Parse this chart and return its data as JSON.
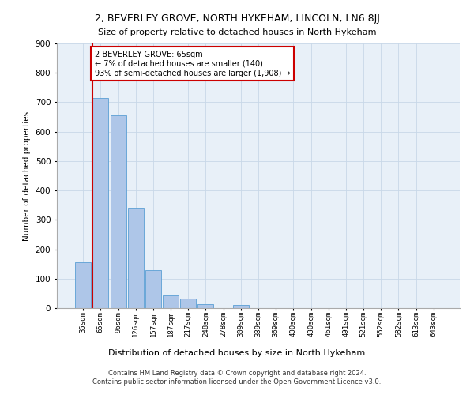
{
  "title": "2, BEVERLEY GROVE, NORTH HYKEHAM, LINCOLN, LN6 8JJ",
  "subtitle": "Size of property relative to detached houses in North Hykeham",
  "xlabel": "Distribution of detached houses by size in North Hykeham",
  "ylabel": "Number of detached properties",
  "categories": [
    "35sqm",
    "65sqm",
    "96sqm",
    "126sqm",
    "157sqm",
    "187sqm",
    "217sqm",
    "248sqm",
    "278sqm",
    "309sqm",
    "339sqm",
    "369sqm",
    "400sqm",
    "430sqm",
    "461sqm",
    "491sqm",
    "521sqm",
    "552sqm",
    "582sqm",
    "613sqm",
    "643sqm"
  ],
  "values": [
    155,
    715,
    655,
    342,
    128,
    42,
    33,
    13,
    0,
    10,
    0,
    0,
    0,
    0,
    0,
    0,
    0,
    0,
    0,
    0,
    0
  ],
  "bar_color": "#aec6e8",
  "bar_edge_color": "#5a9fd4",
  "highlight_line_color": "#cc0000",
  "annotation_text": "2 BEVERLEY GROVE: 65sqm\n← 7% of detached houses are smaller (140)\n93% of semi-detached houses are larger (1,908) →",
  "annotation_box_color": "#ffffff",
  "annotation_box_edge_color": "#cc0000",
  "ylim": [
    0,
    900
  ],
  "yticks": [
    0,
    100,
    200,
    300,
    400,
    500,
    600,
    700,
    800,
    900
  ],
  "grid_color": "#c8d8e8",
  "background_color": "#e8f0f8",
  "footer_line1": "Contains HM Land Registry data © Crown copyright and database right 2024.",
  "footer_line2": "Contains public sector information licensed under the Open Government Licence v3.0."
}
